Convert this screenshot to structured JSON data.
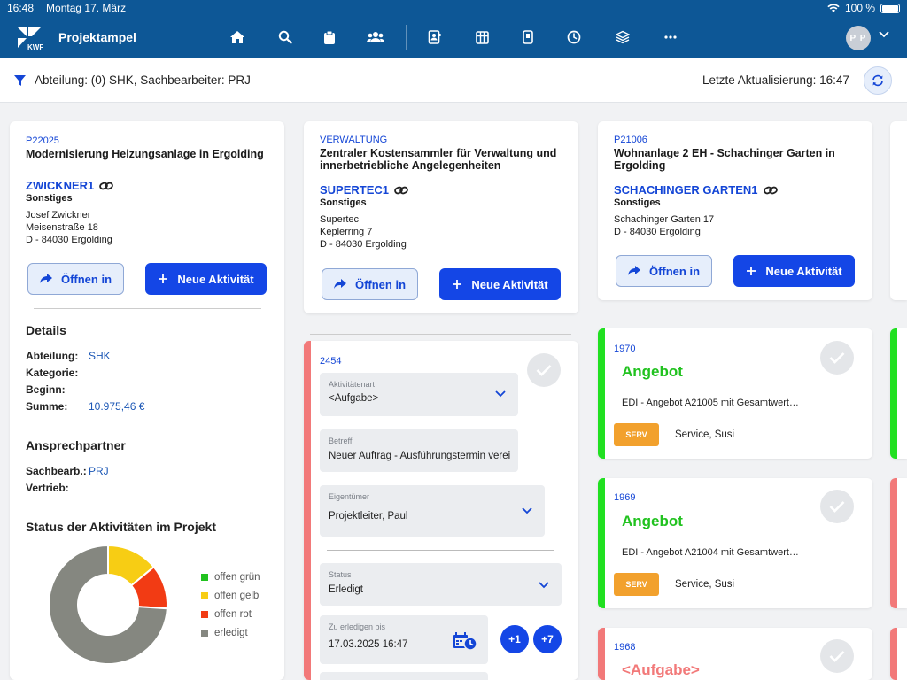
{
  "statusbar": {
    "time": "16:48",
    "date": "Montag 17. März",
    "battery": "100 %"
  },
  "header": {
    "app_title": "Projektampel",
    "avatar_initials": "P P",
    "nav_icons": [
      "home-icon",
      "search-icon",
      "clipboard-icon",
      "users-icon",
      "contact-card-icon",
      "grid-icon",
      "tag-icon",
      "clock-icon",
      "layers-icon",
      "more-icon"
    ]
  },
  "filter": {
    "text": "Abteilung: (0) SHK, Sachbearbeiter: PRJ",
    "updated": "Letzte Aktualisierung: 16:47"
  },
  "projects": [
    {
      "id": "P22025",
      "title": "Modernisierung Heizungsanlage in Ergolding",
      "customer": "ZWICKNER1",
      "category": "Sonstiges",
      "address1": "Josef Zwickner",
      "address2": "Meisenstraße 18",
      "address3": "D - 84030 Ergolding"
    },
    {
      "id": "VERWALTUNG",
      "title_line1": "Zentraler Kostensammler für Verwaltung und",
      "title_line2": "innerbetriebliche Angelegenheiten",
      "customer": "SUPERTEC1",
      "category": "Sonstiges",
      "address1": "Supertec",
      "address2": "Keplerring 7",
      "address3": "D - 84030 Ergolding"
    },
    {
      "id": "P21006",
      "title_line1": "Wohnanlage 2 EH - Schachinger Garten in",
      "title_line2": "Ergolding",
      "customer": "SCHACHINGER GARTEN1",
      "category": "Sonstiges",
      "address1": "Schachinger Garten 17",
      "address2": "D - 84030 Ergolding"
    }
  ],
  "buttons": {
    "open": "Öffnen in",
    "new_activity": "Neue Aktivität"
  },
  "details": {
    "heading": "Details",
    "abteilung_label": "Abteilung:",
    "abteilung_value": "SHK",
    "kategorie_label": "Kategorie:",
    "beginn_label": "Beginn:",
    "summe_label": "Summe:",
    "summe_value": "10.975,46 €",
    "contact_heading": "Ansprechpartner",
    "sachbearb_label": "Sachbearb.:",
    "sachbearb_value": "PRJ",
    "vertrieb_label": "Vertrieb:"
  },
  "status_chart": {
    "heading": "Status der Aktivitäten im Projekt",
    "colors": {
      "gruen": "#21c21f",
      "gelb": "#f7cd14",
      "rot": "#f23b14",
      "erledigt": "#858780"
    }
  },
  "chart_data": {
    "type": "pie",
    "title": "Status der Aktivitäten im Projekt",
    "categories": [
      "offen grün",
      "offen gelb",
      "offen rot",
      "erledigt"
    ],
    "values": [
      0,
      14,
      12,
      74
    ],
    "donut": true,
    "legend": "right"
  },
  "activity_form": {
    "number": "2454",
    "type_label": "Aktivitätenart",
    "type_value": "<Aufgabe>",
    "subject_label": "Betreff",
    "subject_value": "Neuer Auftrag - Ausführungstermin verei",
    "owner_label": "Eigentümer",
    "owner_value": "Projektleiter, Paul",
    "status_label": "Status",
    "status_value": "Erledigt",
    "due_label": "Zu erledigen bis",
    "due_value": "17.03.2025 16:47",
    "plus1": "+1",
    "plus7": "+7"
  },
  "activities": [
    {
      "number": "1970",
      "title": "Angebot",
      "desc": "EDI - Angebot A21005 mit Gesamtwert…",
      "badge": "SERV",
      "person": "Service, Susi"
    },
    {
      "number": "1969",
      "title": "Angebot",
      "desc": "EDI - Angebot A21004 mit Gesamtwert…",
      "badge": "SERV",
      "person": "Service, Susi"
    },
    {
      "number": "1968",
      "title": "<Aufgabe>"
    }
  ]
}
